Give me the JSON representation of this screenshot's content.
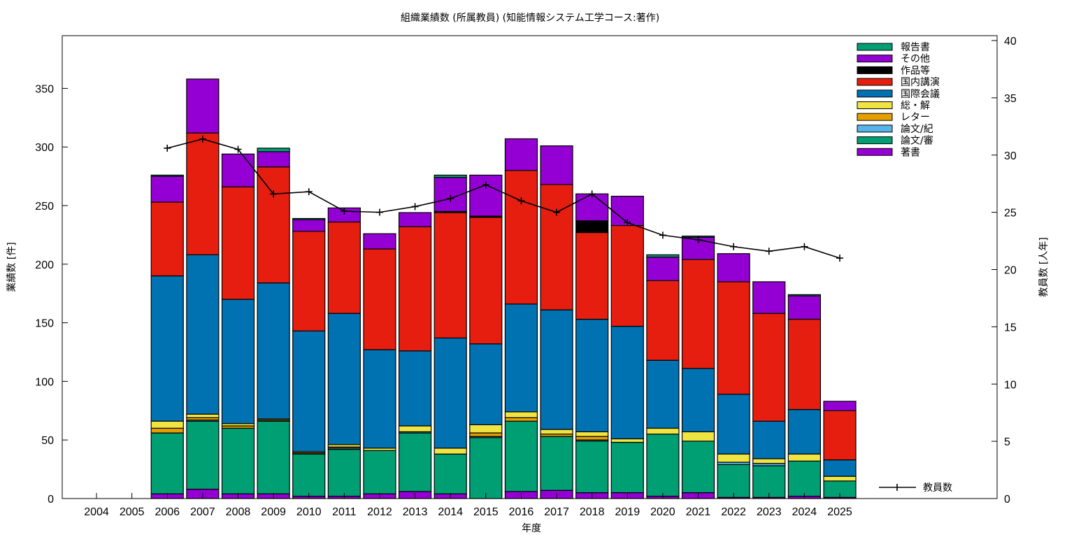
{
  "chart_data": {
    "type": "bar",
    "stacked": true,
    "title": "組織業績数 (所属教員) (知能情報システム工学コース:著作)",
    "xlabel": "年度",
    "ylabel": "業績数 [件]",
    "y2label": "教員数 [人年]",
    "ylim": [
      0,
      395
    ],
    "y2lim": [
      0,
      40
    ],
    "yticks": [
      0,
      50,
      100,
      150,
      200,
      250,
      300,
      350
    ],
    "y2ticks": [
      0,
      5,
      10,
      15,
      20,
      25,
      30,
      35,
      40
    ],
    "categories": [
      "2004",
      "2005",
      "2006",
      "2007",
      "2008",
      "2009",
      "2010",
      "2011",
      "2012",
      "2013",
      "2014",
      "2015",
      "2016",
      "2017",
      "2018",
      "2019",
      "2020",
      "2021",
      "2022",
      "2023",
      "2024",
      "2025"
    ],
    "legend_position": "top-right",
    "series": [
      {
        "name": "著書",
        "color": "#9400d3",
        "values": [
          0,
          0,
          4,
          8,
          4,
          4,
          2,
          2,
          4,
          6,
          4,
          0,
          6,
          7,
          5,
          5,
          2,
          5,
          1,
          1,
          2,
          1
        ]
      },
      {
        "name": "論文/審",
        "color": "#009e73",
        "values": [
          0,
          0,
          52,
          58,
          56,
          62,
          36,
          40,
          37,
          50,
          34,
          52,
          60,
          46,
          44,
          43,
          53,
          44,
          28,
          27,
          30,
          14
        ]
      },
      {
        "name": "論文/紀",
        "color": "#56b4e9",
        "values": [
          0,
          0,
          0,
          1,
          0,
          0,
          0,
          1,
          0,
          1,
          0,
          1,
          0,
          0,
          1,
          0,
          0,
          0,
          2,
          2,
          0,
          0
        ]
      },
      {
        "name": "レター",
        "color": "#e69f00",
        "values": [
          0,
          0,
          4,
          2,
          2,
          1,
          1,
          1,
          0,
          0,
          0,
          3,
          3,
          2,
          3,
          0,
          0,
          0,
          0,
          0,
          0,
          0
        ]
      },
      {
        "name": "総・解",
        "color": "#f0e442",
        "values": [
          0,
          0,
          6,
          3,
          2,
          1,
          1,
          2,
          2,
          5,
          5,
          7,
          5,
          4,
          4,
          3,
          5,
          8,
          7,
          4,
          6,
          4
        ]
      },
      {
        "name": "国際会議",
        "color": "#0072b2",
        "values": [
          0,
          0,
          124,
          136,
          106,
          116,
          103,
          112,
          84,
          64,
          94,
          69,
          92,
          102,
          96,
          96,
          58,
          54,
          51,
          32,
          38,
          14
        ]
      },
      {
        "name": "国内講演",
        "color": "#e51e10",
        "values": [
          0,
          0,
          63,
          104,
          96,
          99,
          85,
          78,
          86,
          106,
          107,
          108,
          114,
          107,
          74,
          86,
          68,
          93,
          96,
          92,
          77,
          42
        ]
      },
      {
        "name": "作品等",
        "color": "#000000",
        "values": [
          0,
          0,
          0,
          0,
          0,
          0,
          0,
          0,
          0,
          0,
          1,
          1,
          0,
          0,
          10,
          0,
          0,
          0,
          0,
          0,
          0,
          0
        ]
      },
      {
        "name": "その他",
        "color": "#9400d3",
        "values": [
          0,
          0,
          22,
          46,
          28,
          13,
          10,
          12,
          13,
          12,
          29,
          35,
          27,
          33,
          23,
          25,
          20,
          19,
          24,
          27,
          20,
          8
        ]
      },
      {
        "name": "報告書",
        "color": "#009e73",
        "values": [
          0,
          0,
          1,
          0,
          0,
          3,
          1,
          0,
          0,
          0,
          2,
          0,
          0,
          0,
          0,
          0,
          2,
          1,
          0,
          0,
          1,
          0
        ]
      }
    ],
    "line_series": {
      "name": "教員数",
      "axis": "y2",
      "color": "#000000",
      "values": [
        null,
        null,
        30.6,
        31.4,
        30.5,
        26.6,
        26.8,
        25.1,
        25.0,
        25.5,
        26.2,
        27.4,
        26.0,
        25.0,
        26.6,
        24.1,
        23.0,
        22.6,
        22.0,
        21.6,
        22.0,
        21.0
      ]
    }
  }
}
